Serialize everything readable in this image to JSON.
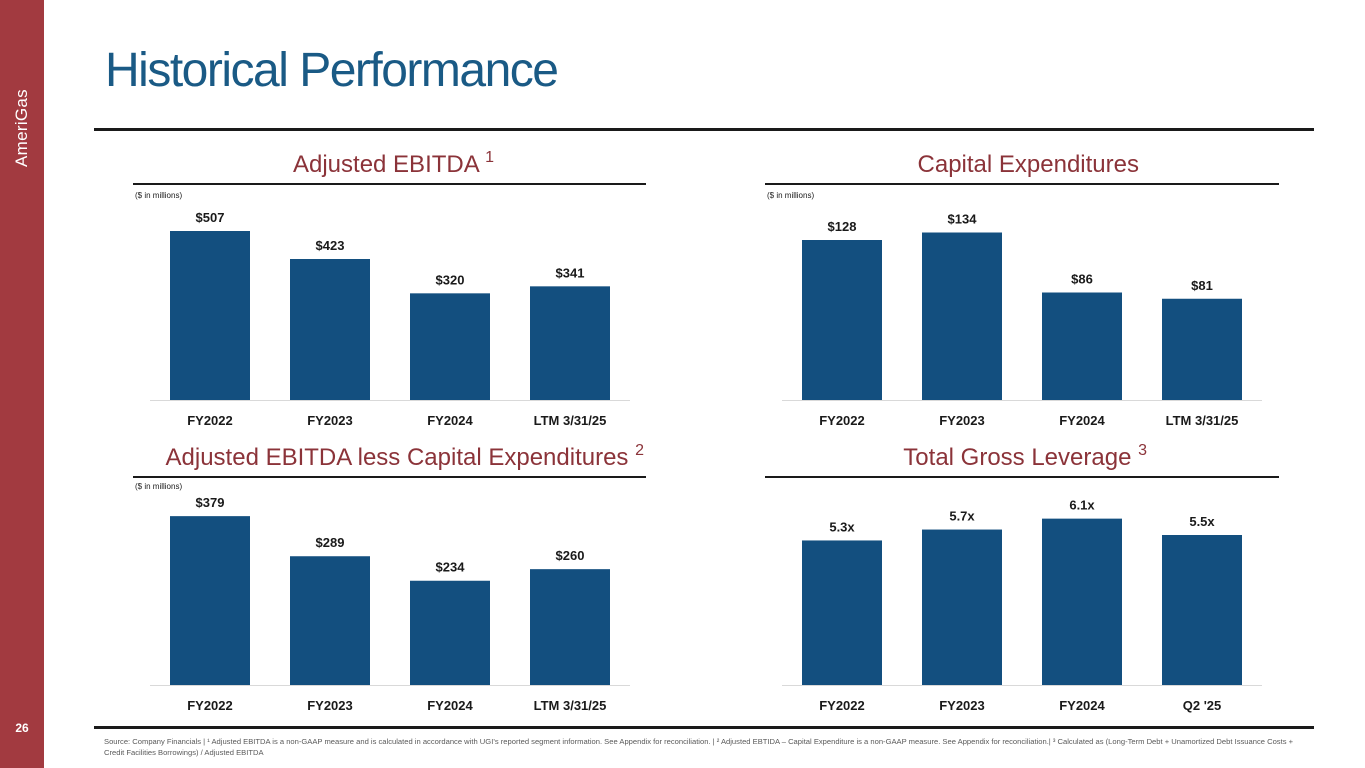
{
  "brand": "AmeriGas",
  "page_number": "26",
  "title": "Historical Performance",
  "colors": {
    "bar": "#134f7f",
    "accent": "#a23a40",
    "chart_title": "#8b3339",
    "title": "#1a5a85"
  },
  "charts": {
    "ebitda": {
      "title": "Adjusted EBITDA",
      "sup": "1",
      "units": "($ in millions)"
    },
    "capex": {
      "title": "Capital Expenditures",
      "sup": "",
      "units": "($ in millions)"
    },
    "ebitda_less_capex": {
      "title": "Adjusted EBITDA less Capital Expenditures",
      "sup": "2",
      "units": "($ in millions)"
    },
    "leverage": {
      "title": "Total Gross Leverage",
      "sup": "3",
      "units": ""
    }
  },
  "chart_data": [
    {
      "id": "ebitda",
      "type": "bar",
      "title": "Adjusted EBITDA",
      "categories": [
        "FY2022",
        "FY2023",
        "FY2024",
        "LTM 3/31/25"
      ],
      "values": [
        507,
        423,
        320,
        341
      ],
      "labels": [
        "$507",
        "$423",
        "$320",
        "$341"
      ],
      "ylim": [
        0,
        540
      ],
      "xlabel": "",
      "ylabel": "($ in millions)"
    },
    {
      "id": "capex",
      "type": "bar",
      "title": "Capital Expenditures",
      "categories": [
        "FY2022",
        "FY2023",
        "FY2024",
        "LTM 3/31/25"
      ],
      "values": [
        128,
        134,
        86,
        81
      ],
      "labels": [
        "$128",
        "$134",
        "$86",
        "$81"
      ],
      "ylim": [
        0,
        144
      ],
      "xlabel": "",
      "ylabel": "($ in millions)"
    },
    {
      "id": "ebitda_less_capex",
      "type": "bar",
      "title": "Adjusted EBITDA less Capital Expenditures",
      "categories": [
        "FY2022",
        "FY2023",
        "FY2024",
        "LTM 3/31/25"
      ],
      "values": [
        379,
        289,
        234,
        260
      ],
      "labels": [
        "$379",
        "$289",
        "$234",
        "$260"
      ],
      "ylim": [
        0,
        404
      ],
      "xlabel": "",
      "ylabel": "($ in millions)"
    },
    {
      "id": "leverage",
      "type": "bar",
      "title": "Total Gross Leverage",
      "categories": [
        "FY2022",
        "FY2023",
        "FY2024",
        "Q2 '25"
      ],
      "values": [
        5.3,
        5.7,
        6.1,
        5.5
      ],
      "labels": [
        "5.3x",
        "5.7x",
        "6.1x",
        "5.5x"
      ],
      "ylim": [
        0,
        6.6
      ],
      "xlabel": "",
      "ylabel": ""
    }
  ],
  "footer": "Source: Company Financials | ¹ Adjusted EBITDA is a non-GAAP measure and is calculated in accordance with UGI’s reported segment information. See Appendix for reconciliation. | ² Adjusted EBTIDA – Capital Expenditure is a non-GAAP measure. See Appendix for reconciliation.| ³ Calculated as (Long-Term Debt + Unamortized Debt Issuance Costs + Credit Facilities Borrowings) / Adjusted EBITDA"
}
